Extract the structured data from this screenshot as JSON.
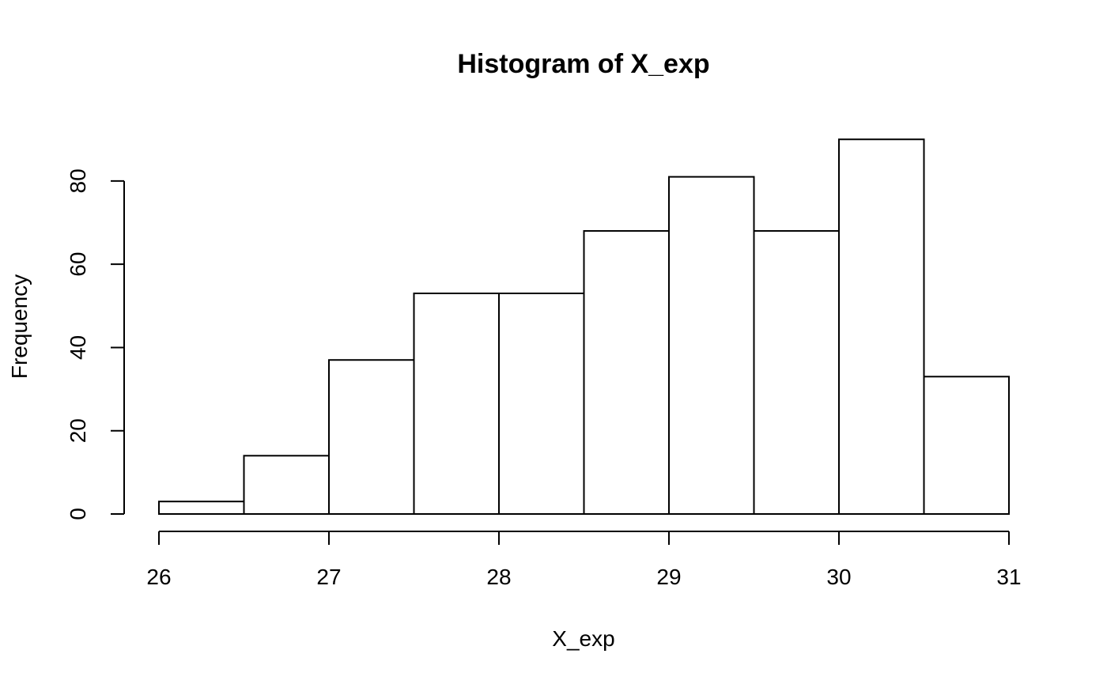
{
  "chart_data": {
    "type": "bar",
    "title": "Histogram of X_exp",
    "xlabel": "X_exp",
    "ylabel": "Frequency",
    "bins": [
      {
        "start": 26.0,
        "end": 26.5,
        "count": 3
      },
      {
        "start": 26.5,
        "end": 27.0,
        "count": 14
      },
      {
        "start": 27.0,
        "end": 27.5,
        "count": 37
      },
      {
        "start": 27.5,
        "end": 28.0,
        "count": 53
      },
      {
        "start": 28.0,
        "end": 28.5,
        "count": 53
      },
      {
        "start": 28.5,
        "end": 29.0,
        "count": 68
      },
      {
        "start": 29.0,
        "end": 29.5,
        "count": 81
      },
      {
        "start": 29.5,
        "end": 30.0,
        "count": 68
      },
      {
        "start": 30.0,
        "end": 30.5,
        "count": 90
      },
      {
        "start": 30.5,
        "end": 31.0,
        "count": 33
      }
    ],
    "xlim": [
      26,
      31
    ],
    "ylim": [
      0,
      90
    ],
    "x_ticks": [
      26,
      27,
      28,
      29,
      30,
      31
    ],
    "x_tick_labels": [
      "26",
      "27",
      "28",
      "29",
      "30",
      "31"
    ],
    "y_ticks": [
      0,
      20,
      40,
      60,
      80
    ],
    "y_tick_labels": [
      "0",
      "20",
      "40",
      "60",
      "80"
    ],
    "grid": false,
    "legend": "none",
    "bar_fill": "#ffffff",
    "bar_stroke": "#000000"
  }
}
